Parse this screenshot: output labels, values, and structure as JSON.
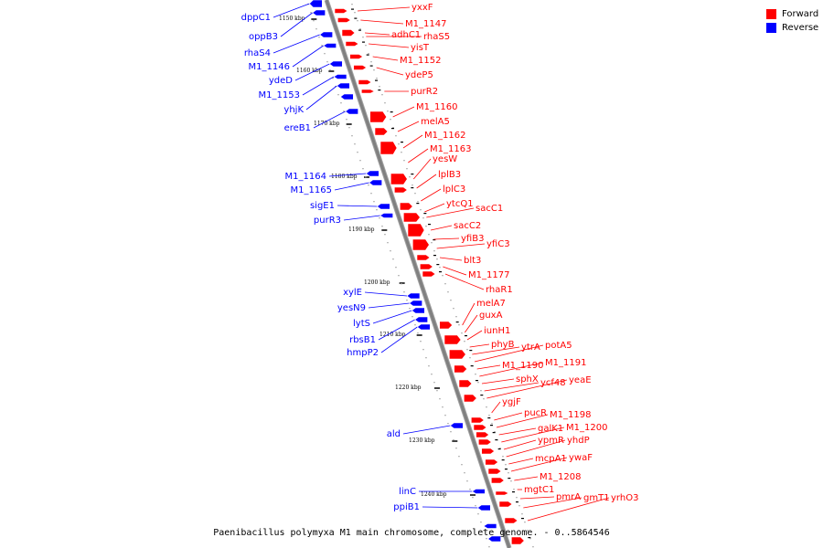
{
  "legend": [
    {
      "label": "Forward",
      "color": "#ff0000"
    },
    {
      "label": "Reverse",
      "color": "#0000ff"
    }
  ],
  "colors": {
    "forward": "#ff0000",
    "reverse": "#0000ff",
    "axis": "#808080"
  },
  "caption": "Paenibacillus polymyxa M1 main chromosome, complete genome. - 0..5864546",
  "ticks": [
    "1150 kbp",
    "1160 kbp",
    "1170 kbp",
    "1180 kbp",
    "1190 kbp",
    "1200 kbp",
    "1210 kbp",
    "1220 kbp",
    "1230 kbp",
    "1240 kbp"
  ],
  "forward_genes": [
    "yxxF",
    "M1_1147",
    "adhC1",
    "rhaS5",
    "yisT",
    "M1_1152",
    "ydeP5",
    "purR2",
    "M1_1160",
    "melA5",
    "M1_1162",
    "M1_1163",
    "yesW",
    "lplB3",
    "lplC3",
    "ytcQ1",
    "sacC1",
    "sacC2",
    "yfiB3",
    "yfiC3",
    "blt3",
    "M1_1177",
    "rhaR1",
    "melA7",
    "guxA",
    "iunH1",
    "phyB",
    "ytrA",
    "potA5",
    "M1_1190",
    "M1_1191",
    "sphX",
    "ycf48",
    "yeaE",
    "ygjF",
    "pucR",
    "M1_1198",
    "galK1",
    "M1_1200",
    "ypmR",
    "yhdP",
    "mcpA1",
    "ywaF",
    "M1_1208",
    "mgtC1",
    "pmrA",
    "gmT1",
    "yrhO3"
  ],
  "reverse_genes": [
    "dppC1",
    "oppB3",
    "rhaS4",
    "M1_1146",
    "ydeD",
    "M1_1153",
    "yhjK",
    "ereB1",
    "M1_1164",
    "M1_1165",
    "sigE1",
    "purR3",
    "xylE",
    "yesN9",
    "lytS",
    "rbsB1",
    "hmpP2",
    "ald",
    "linC",
    "ppiB1"
  ]
}
